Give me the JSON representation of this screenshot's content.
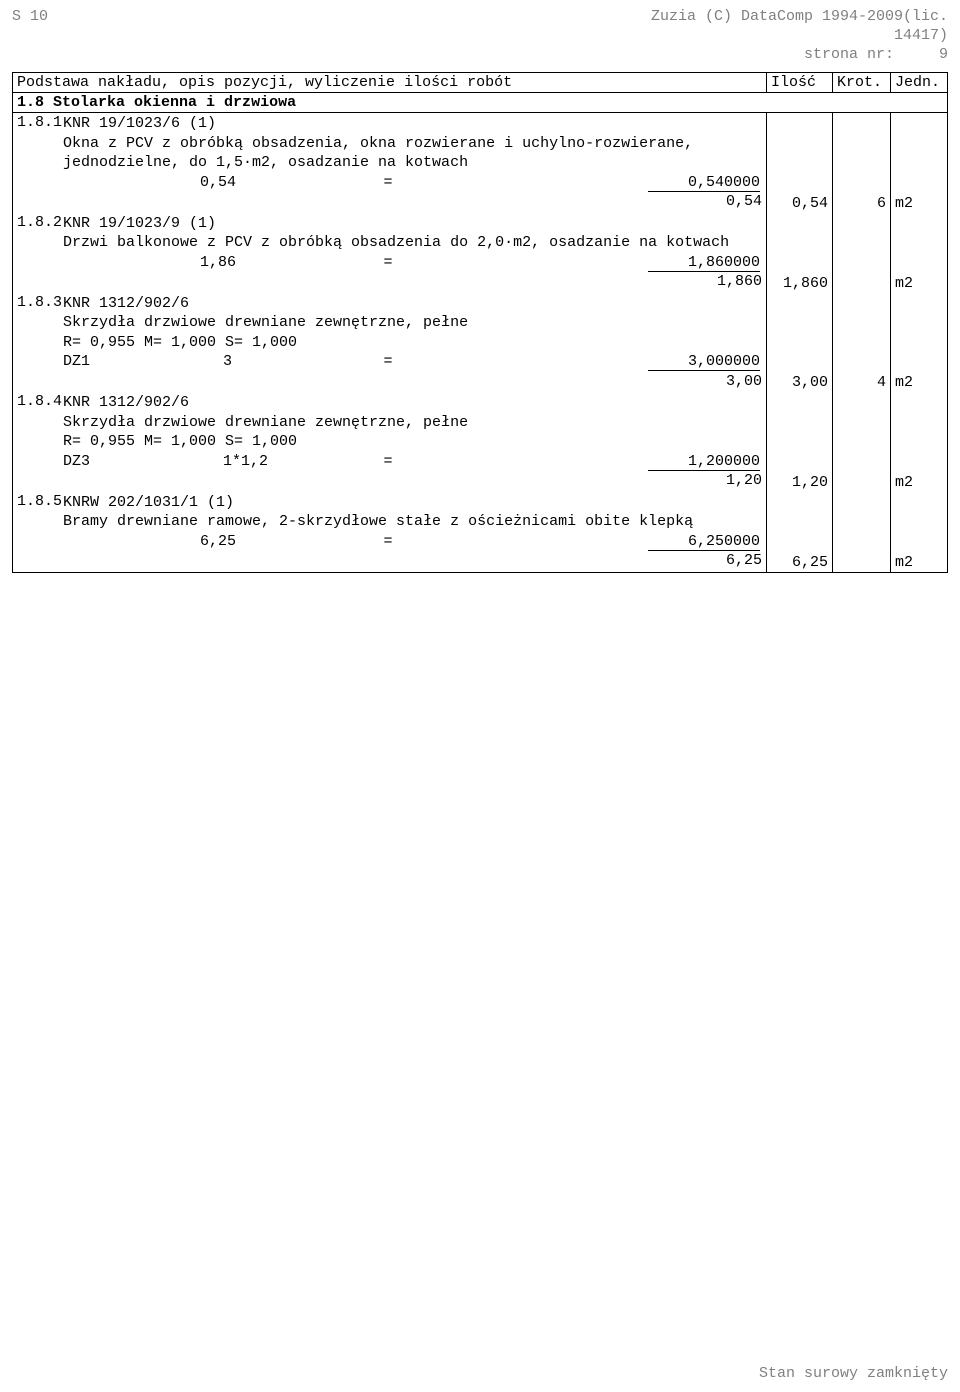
{
  "header": {
    "left": "S 10",
    "right1": "Zuzia (C) DataComp 1994-2009(lic.",
    "right2": "14417)",
    "right3_label": "strona nr:",
    "right3_val": "9"
  },
  "table_head": {
    "c12": "Podstawa nakładu, opis pozycji, wyliczenie ilości robót",
    "c3": "Ilość",
    "c4": "Krot.",
    "c5": "Jedn."
  },
  "section": {
    "num": "1.8",
    "title": "Stolarka okienna i drzwiowa"
  },
  "items": [
    {
      "num": "1.8.1",
      "code": "KNR 19/1023/6 (1)",
      "desc": "Okna z PCV z obróbką obsadzenia, okna rozwierane i uchylno-rozwierane, jednodzielne, do 1,5·m2, osadzanie na kotwach",
      "calc_label": "",
      "calc_val": "0,54",
      "calc_eq": "=",
      "calc_res": "0,540000",
      "sum": "0,54",
      "ilosc": "0,54",
      "krot": "6",
      "jedn": "m2"
    },
    {
      "num": "1.8.2",
      "code": "KNR 19/1023/9 (1)",
      "desc": "Drzwi balkonowe z PCV z obróbką obsadzenia do 2,0·m2, osadzanie na kotwach",
      "calc_label": "",
      "calc_val": "1,86",
      "calc_eq": "=",
      "calc_res": "1,860000",
      "sum": "1,860",
      "ilosc": "1,860",
      "krot": "",
      "jedn": "m2"
    },
    {
      "num": "1.8.3",
      "code": "KNR 1312/902/6",
      "desc": "Skrzydła drzwiowe drewniane zewnętrzne, pełne",
      "params": "R= 0,955   M= 1,000   S= 1,000",
      "calc_label": "DZ1",
      "calc_val": "3",
      "calc_eq": "=",
      "calc_res": "3,000000",
      "sum": "3,00",
      "ilosc": "3,00",
      "krot": "4",
      "jedn": "m2"
    },
    {
      "num": "1.8.4",
      "code": "KNR 1312/902/6",
      "desc": "Skrzydła drzwiowe drewniane zewnętrzne, pełne",
      "params": "R= 0,955   M= 1,000   S= 1,000",
      "calc_label": "DZ3",
      "calc_val": "1*1,2",
      "calc_eq": "=",
      "calc_res": "1,200000",
      "sum": "1,20",
      "ilosc": "1,20",
      "krot": "",
      "jedn": "m2"
    },
    {
      "num": "1.8.5",
      "code": "KNRW 202/1031/1 (1)",
      "desc": "Bramy drewniane ramowe, 2-skrzydłowe stałe z ościeżnicami obite klepką",
      "calc_label": "",
      "calc_val": "6,25",
      "calc_eq": "=",
      "calc_res": "6,250000",
      "sum": "6,25",
      "ilosc": "6,25",
      "krot": "",
      "jedn": "m2"
    }
  ],
  "footer": "Stan surowy zamknięty"
}
